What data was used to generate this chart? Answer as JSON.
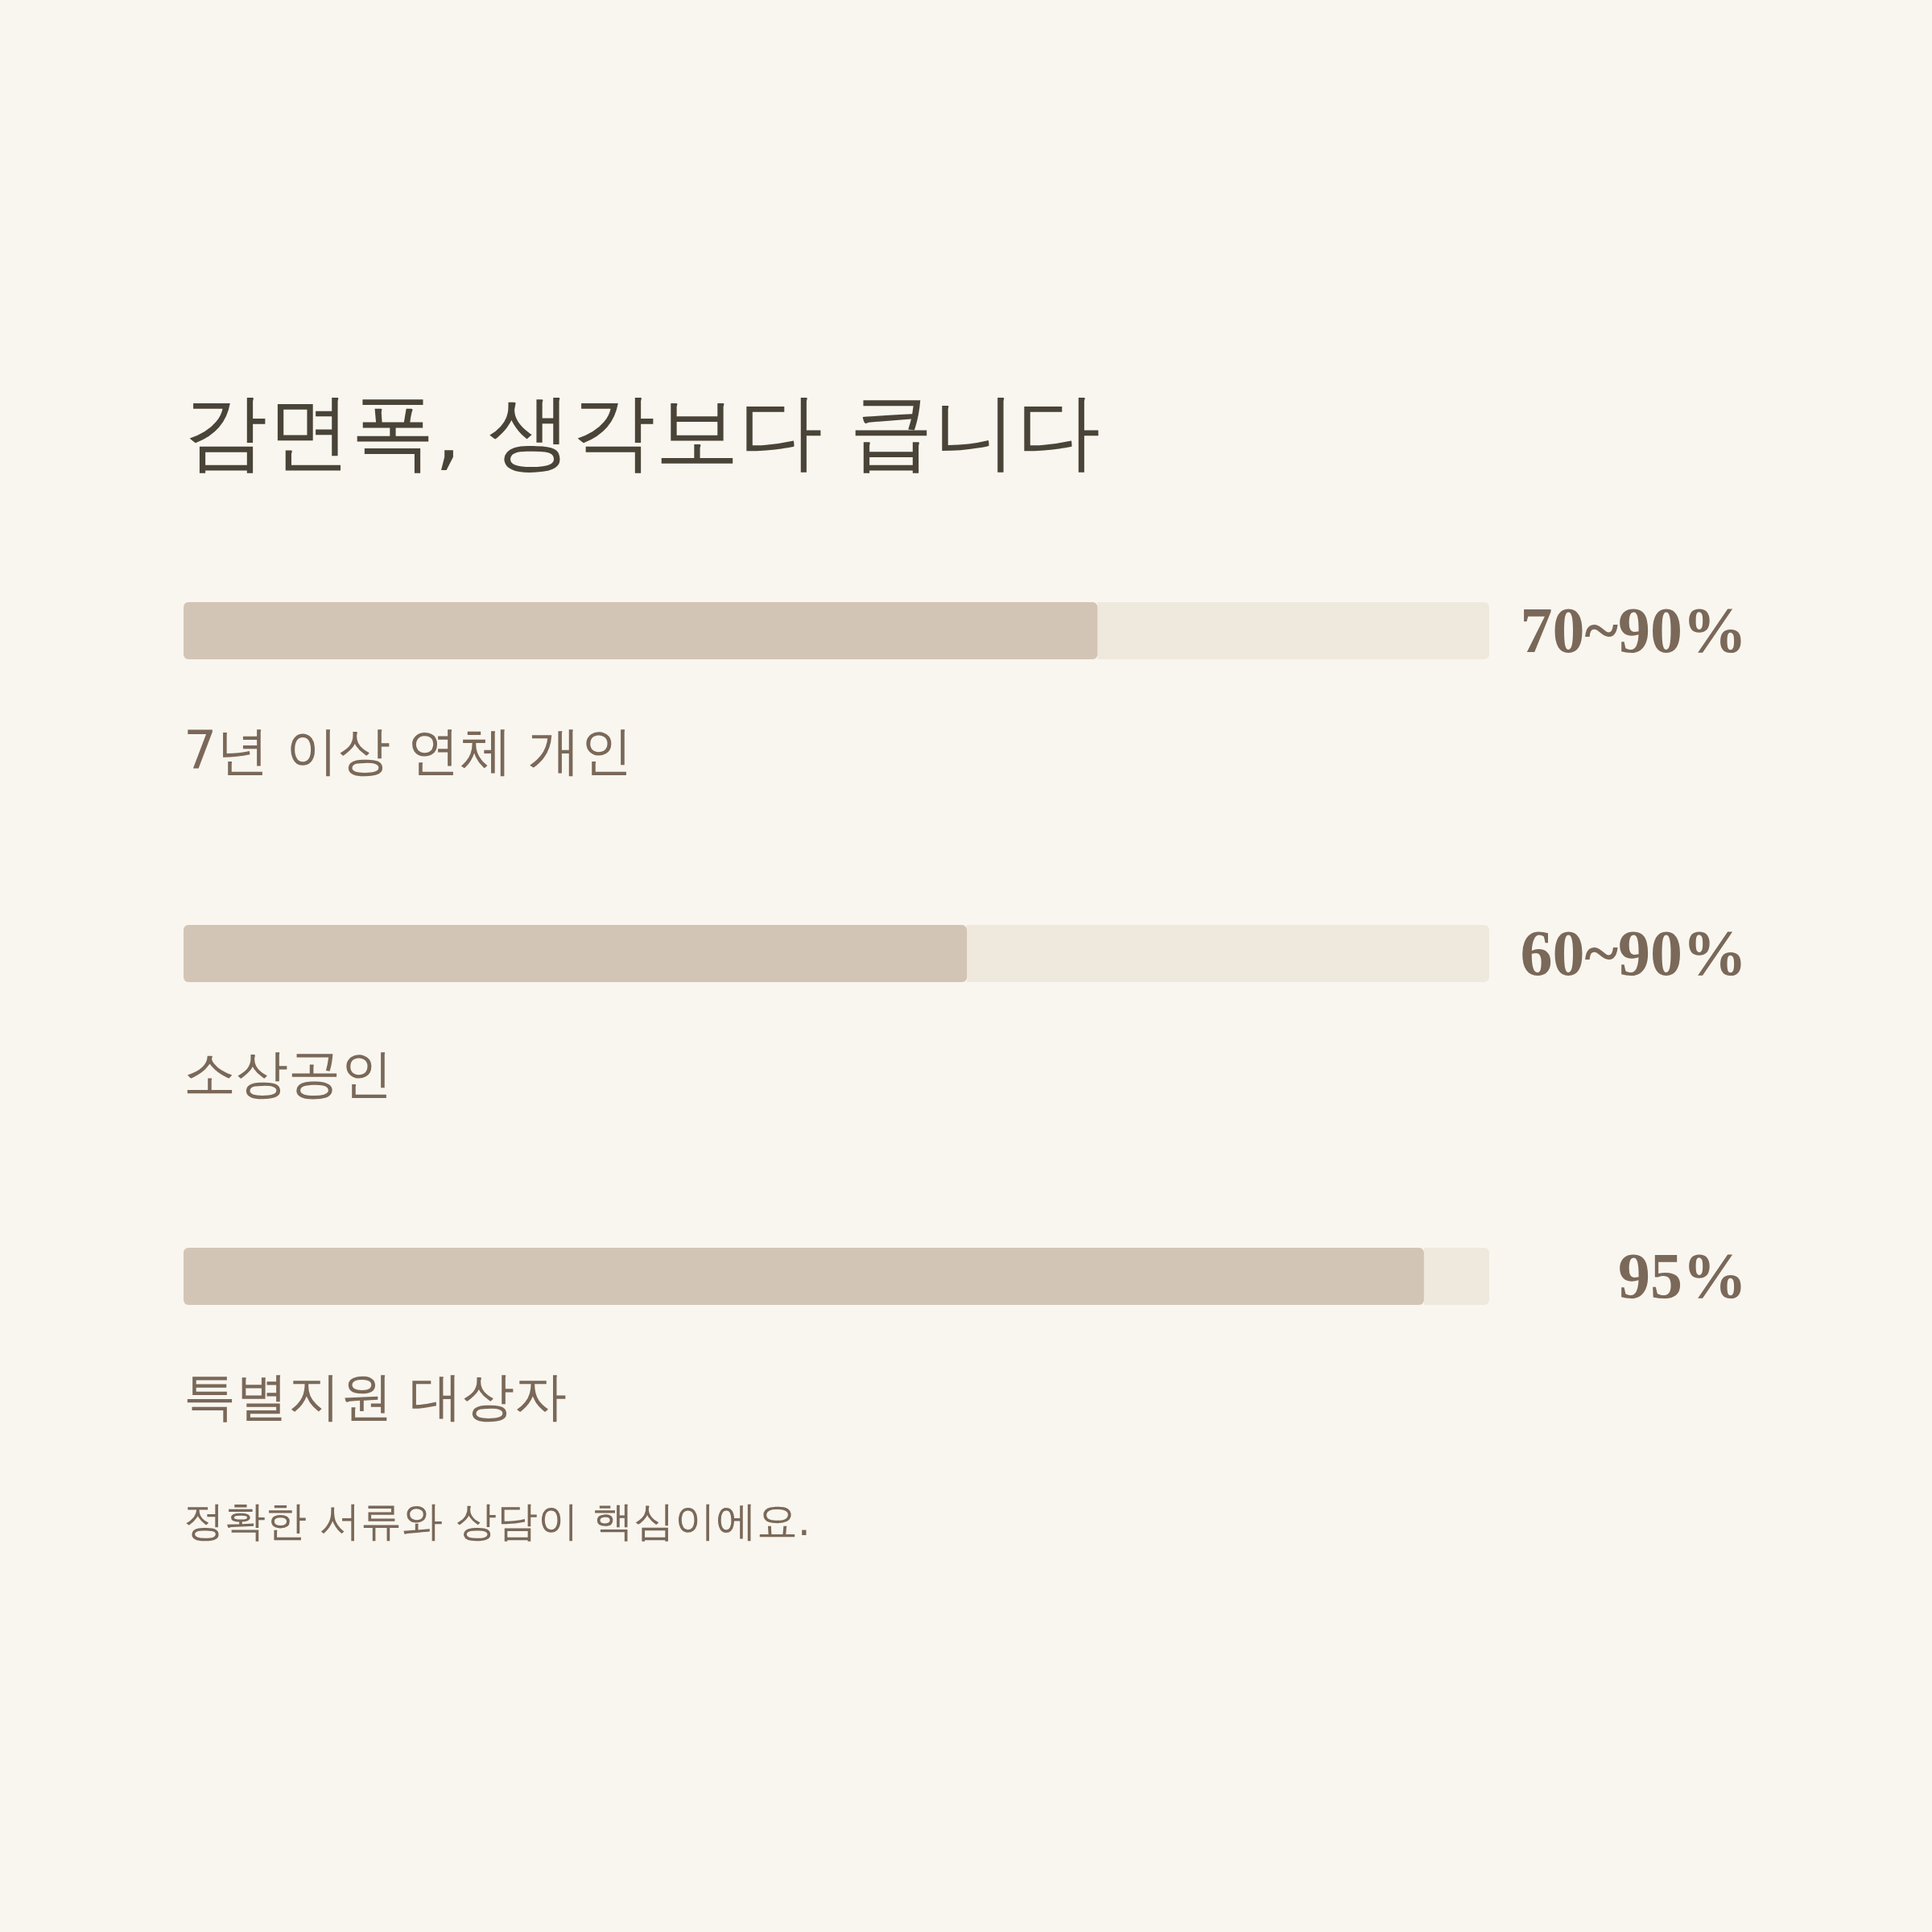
{
  "chart_data": {
    "type": "bar",
    "orientation": "horizontal",
    "title": "감면폭, 생각보다 큽니다",
    "categories": [
      "7년 이상 연체 개인",
      "소상공인",
      "특별지원 대상자"
    ],
    "values": [
      70,
      60,
      95
    ],
    "value_labels": [
      "70~90%",
      "60~90%",
      "95%"
    ],
    "color": "#d3c5b5",
    "xlim": [
      0,
      100
    ],
    "annotations": [
      "정확한 서류와 상담이 핵심이에요."
    ]
  }
}
